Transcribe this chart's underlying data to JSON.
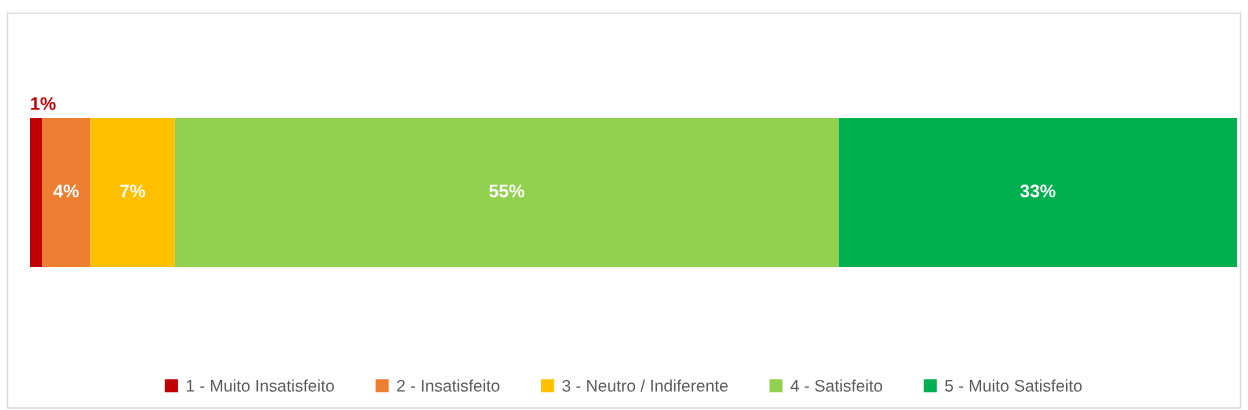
{
  "chart_data": {
    "type": "bar",
    "orientation": "horizontal",
    "stacked": true,
    "categories": [
      null
    ],
    "legend": "bottom",
    "series": [
      {
        "name": "1 - Muito Insatisfeito",
        "color": "#c00000",
        "values": [
          1
        ],
        "value_labels": [
          "1%"
        ]
      },
      {
        "name": "2 - Insatisfeito",
        "color": "#ed7d31",
        "values": [
          4
        ],
        "value_labels": [
          "4%"
        ]
      },
      {
        "name": "3 - Neutro / Indiferente",
        "color": "#ffc000",
        "values": [
          7
        ],
        "value_labels": [
          "7%"
        ]
      },
      {
        "name": "4 - Satisfeito",
        "color": "#92d050",
        "values": [
          55
        ],
        "value_labels": [
          "55%"
        ]
      },
      {
        "name": "5 - Muito Satisfeito",
        "color": "#00b050",
        "values": [
          33
        ],
        "value_labels": [
          "33%"
        ]
      }
    ]
  }
}
